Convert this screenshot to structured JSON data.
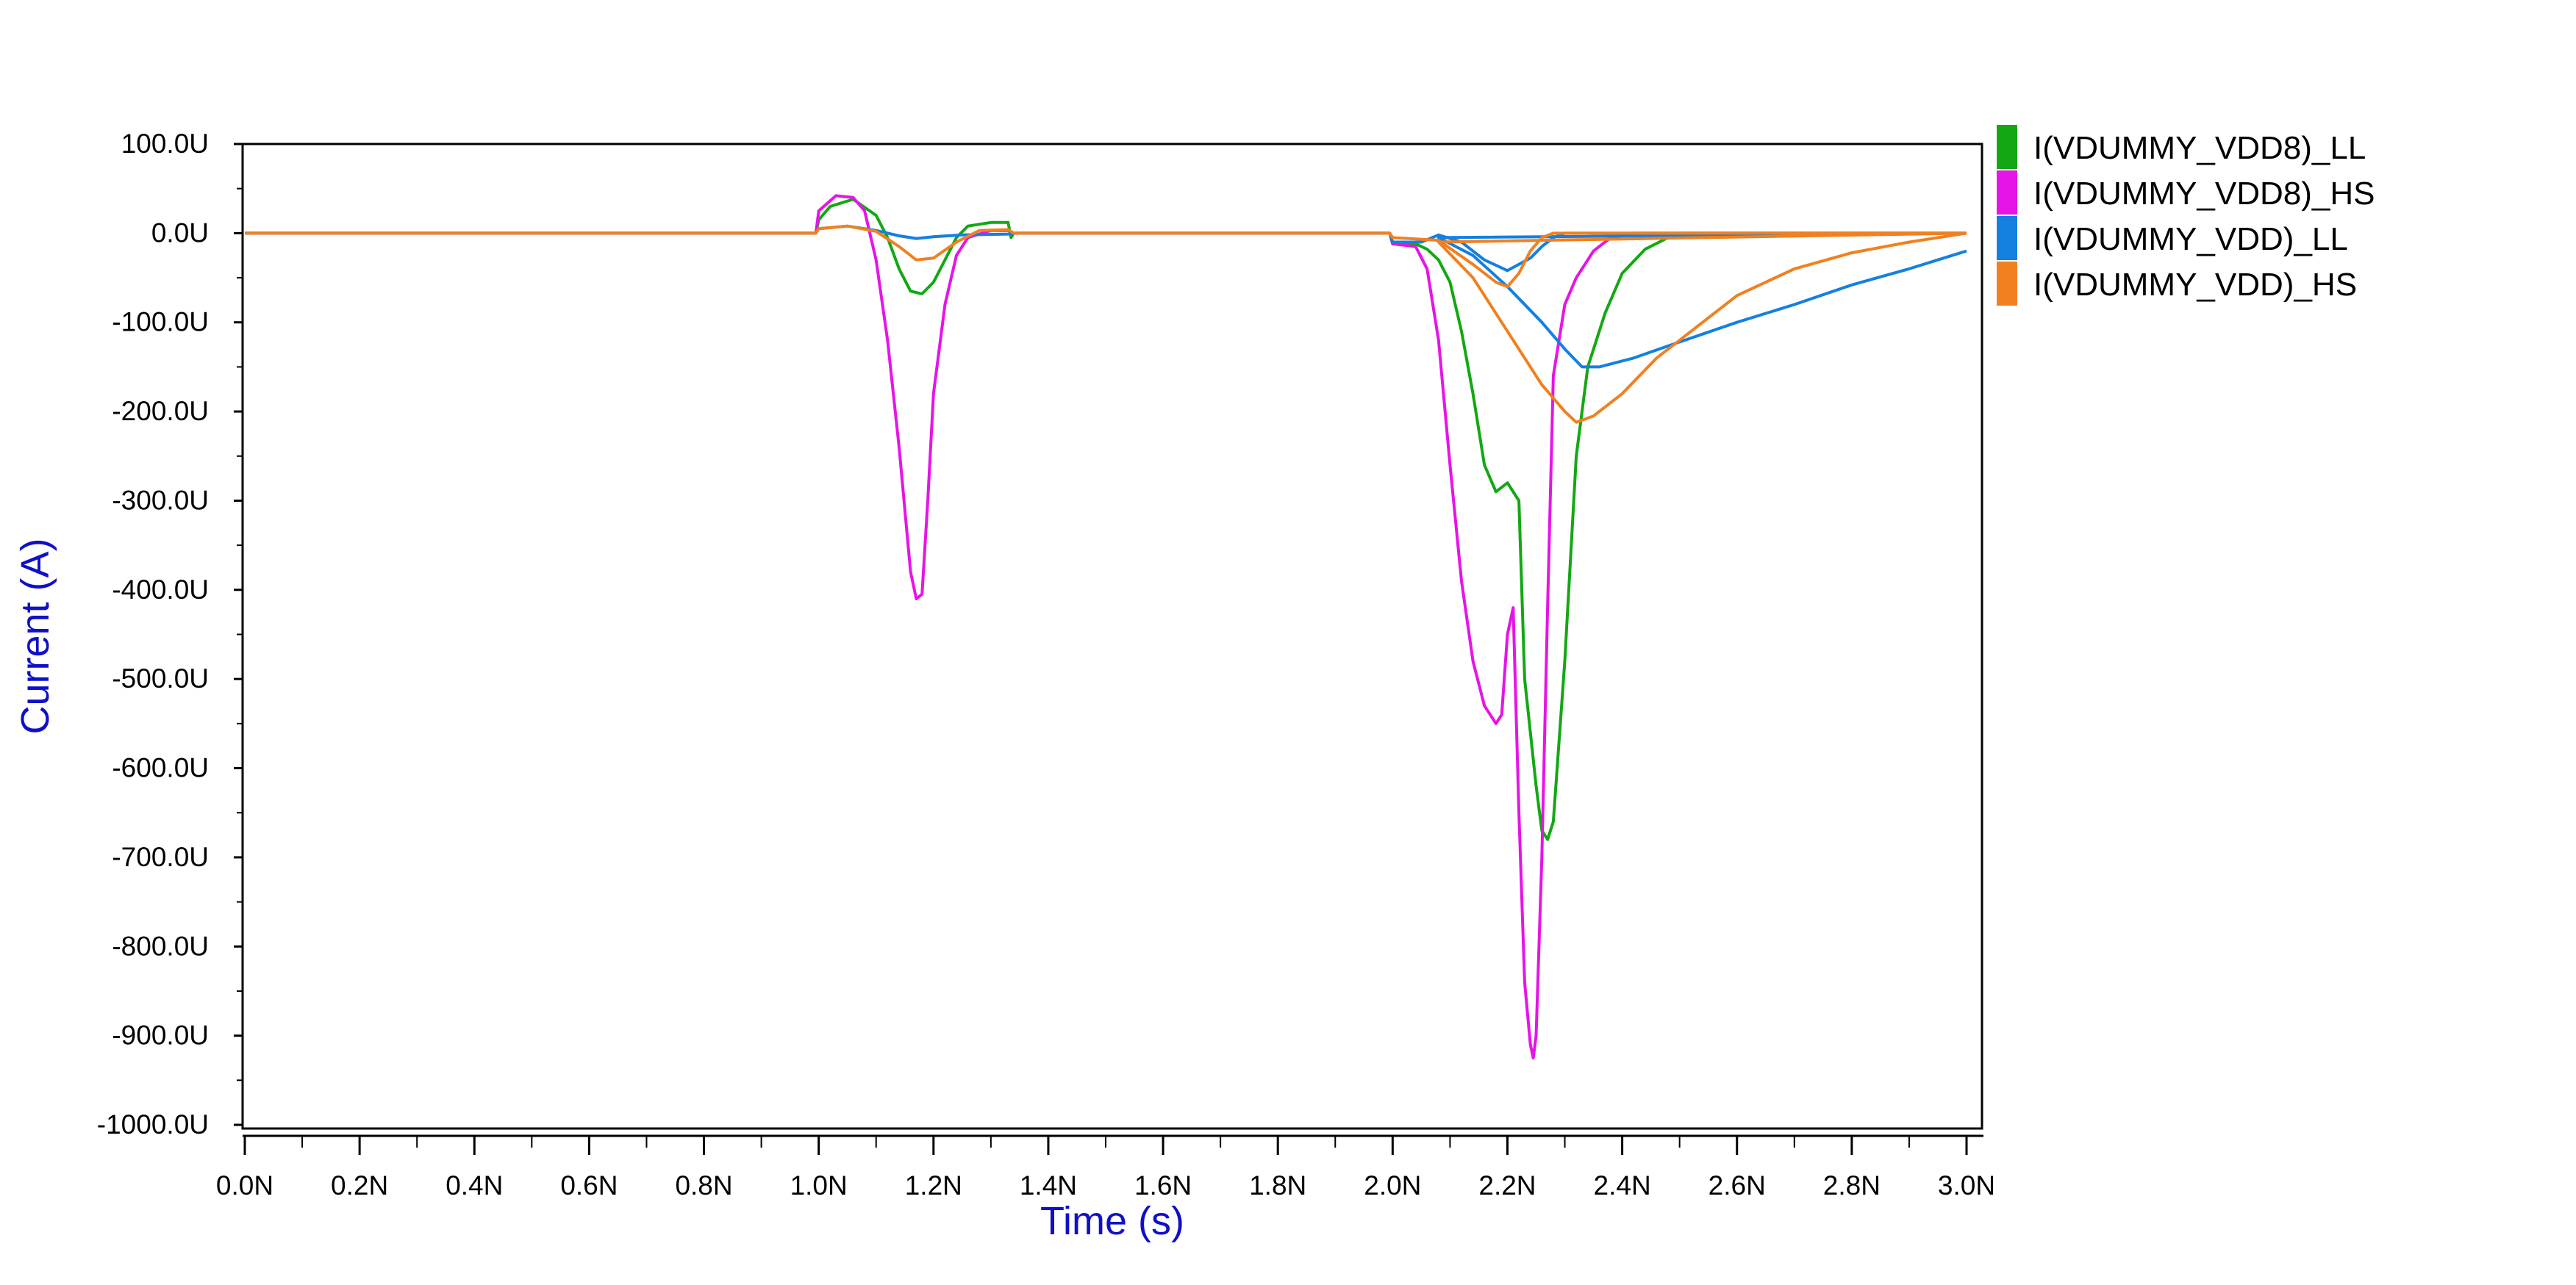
{
  "chart_data": {
    "type": "line",
    "xlabel": "Time (s)",
    "ylabel": "Current (A)",
    "xlim": [
      0,
      3.0
    ],
    "ylim": [
      -1000,
      100
    ],
    "x_unit": "ns",
    "y_unit": "uA",
    "x_ticks": [
      0,
      0.2,
      0.4,
      0.6,
      0.8,
      1.0,
      1.2,
      1.4,
      1.6,
      1.8,
      2.0,
      2.2,
      2.4,
      2.6,
      2.8,
      3.0
    ],
    "x_tick_labels": [
      "0.0N",
      "0.2N",
      "0.4N",
      "0.6N",
      "0.8N",
      "1.0N",
      "1.2N",
      "1.4N",
      "1.6N",
      "1.8N",
      "2.0N",
      "2.2N",
      "2.4N",
      "2.6N",
      "2.8N",
      "3.0N"
    ],
    "y_ticks": [
      100,
      0,
      -100,
      -200,
      -300,
      -400,
      -500,
      -600,
      -700,
      -800,
      -900,
      -1000
    ],
    "y_tick_labels": [
      "100.0U",
      "0.0U",
      "-100.0U",
      "-200.0U",
      "-300.0U",
      "-400.0U",
      "-500.0U",
      "-600.0U",
      "-700.0U",
      "-800.0U",
      "-900.0U",
      "-1000.0U"
    ],
    "grid": false,
    "legend_position": "right-top",
    "axis_title_color": "#1010c8",
    "series": [
      {
        "name": "I(VDUMMY_VDD8)_LL",
        "color": "#13a813",
        "points": [
          [
            0,
            0
          ],
          [
            0.995,
            0
          ],
          [
            1.0,
            15
          ],
          [
            1.02,
            30
          ],
          [
            1.06,
            38
          ],
          [
            1.1,
            20
          ],
          [
            1.12,
            -5
          ],
          [
            1.14,
            -40
          ],
          [
            1.16,
            -65
          ],
          [
            1.18,
            -68
          ],
          [
            1.2,
            -55
          ],
          [
            1.22,
            -30
          ],
          [
            1.24,
            -5
          ],
          [
            1.26,
            8
          ],
          [
            1.3,
            12
          ],
          [
            1.33,
            12
          ],
          [
            1.335,
            -5
          ],
          [
            1.34,
            0
          ],
          [
            1.4,
            0
          ],
          [
            1.995,
            0
          ],
          [
            2.0,
            -12
          ],
          [
            2.04,
            -12
          ],
          [
            2.06,
            -18
          ],
          [
            2.08,
            -30
          ],
          [
            2.1,
            -55
          ],
          [
            2.12,
            -110
          ],
          [
            2.14,
            -180
          ],
          [
            2.16,
            -260
          ],
          [
            2.18,
            -290
          ],
          [
            2.2,
            -280
          ],
          [
            2.22,
            -300
          ],
          [
            2.23,
            -500
          ],
          [
            2.25,
            -620
          ],
          [
            2.26,
            -670
          ],
          [
            2.27,
            -680
          ],
          [
            2.28,
            -660
          ],
          [
            2.3,
            -480
          ],
          [
            2.32,
            -250
          ],
          [
            2.34,
            -150
          ],
          [
            2.37,
            -90
          ],
          [
            2.4,
            -45
          ],
          [
            2.44,
            -18
          ],
          [
            2.48,
            -5
          ],
          [
            2.5,
            0
          ],
          [
            3.0,
            0
          ]
        ]
      },
      {
        "name": "I(VDUMMY_VDD8)_HS",
        "color": "#e614e6",
        "points": [
          [
            0,
            0
          ],
          [
            0.995,
            0
          ],
          [
            1.0,
            25
          ],
          [
            1.03,
            42
          ],
          [
            1.06,
            40
          ],
          [
            1.08,
            25
          ],
          [
            1.1,
            -30
          ],
          [
            1.12,
            -120
          ],
          [
            1.14,
            -240
          ],
          [
            1.16,
            -380
          ],
          [
            1.17,
            -410
          ],
          [
            1.18,
            -405
          ],
          [
            1.19,
            -300
          ],
          [
            1.2,
            -180
          ],
          [
            1.22,
            -80
          ],
          [
            1.24,
            -25
          ],
          [
            1.26,
            -5
          ],
          [
            1.3,
            3
          ],
          [
            1.33,
            3
          ],
          [
            1.34,
            0
          ],
          [
            1.995,
            0
          ],
          [
            2.0,
            -12
          ],
          [
            2.04,
            -15
          ],
          [
            2.06,
            -40
          ],
          [
            2.08,
            -120
          ],
          [
            2.1,
            -260
          ],
          [
            2.12,
            -390
          ],
          [
            2.14,
            -480
          ],
          [
            2.16,
            -530
          ],
          [
            2.18,
            -550
          ],
          [
            2.19,
            -540
          ],
          [
            2.2,
            -450
          ],
          [
            2.21,
            -420
          ],
          [
            2.22,
            -650
          ],
          [
            2.23,
            -840
          ],
          [
            2.24,
            -910
          ],
          [
            2.245,
            -925
          ],
          [
            2.25,
            -900
          ],
          [
            2.26,
            -700
          ],
          [
            2.27,
            -420
          ],
          [
            2.28,
            -160
          ],
          [
            2.3,
            -80
          ],
          [
            2.32,
            -50
          ],
          [
            2.33,
            -40
          ],
          [
            2.35,
            -20
          ],
          [
            2.38,
            -5
          ],
          [
            2.42,
            0
          ],
          [
            3.0,
            0
          ]
        ]
      },
      {
        "name": "I(VDUMMY_VDD)_LL",
        "color": "#1480e0",
        "points": [
          [
            0,
            0
          ],
          [
            0.995,
            0
          ],
          [
            1.0,
            5
          ],
          [
            1.05,
            8
          ],
          [
            1.1,
            3
          ],
          [
            1.14,
            -3
          ],
          [
            1.17,
            -6
          ],
          [
            1.2,
            -4
          ],
          [
            1.25,
            -2
          ],
          [
            1.33,
            -1
          ],
          [
            1.34,
            0
          ],
          [
            1.995,
            0
          ],
          [
            2.0,
            -10
          ],
          [
            2.05,
            -10
          ],
          [
            2.08,
            -2
          ],
          [
            2.12,
            -10
          ],
          [
            2.16,
            -30
          ],
          [
            2.2,
            -42
          ],
          [
            2.24,
            -28
          ],
          [
            2.26,
            -15
          ],
          [
            2.28,
            -5
          ],
          [
            2.3,
            0
          ],
          [
            2.995,
            0
          ],
          [
            2.08,
            -5
          ],
          [
            2.14,
            -25
          ],
          [
            2.2,
            -60
          ],
          [
            2.26,
            -100
          ],
          [
            2.3,
            -130
          ],
          [
            2.33,
            -150
          ],
          [
            2.36,
            -150
          ],
          [
            2.42,
            -140
          ],
          [
            2.5,
            -122
          ],
          [
            2.6,
            -100
          ],
          [
            2.7,
            -80
          ],
          [
            2.8,
            -58
          ],
          [
            2.9,
            -40
          ],
          [
            3.0,
            -20
          ]
        ]
      },
      {
        "name": "I(VDUMMY_VDD)_HS",
        "color": "#f08020",
        "points": [
          [
            0,
            0
          ],
          [
            0.995,
            0
          ],
          [
            1.0,
            5
          ],
          [
            1.05,
            8
          ],
          [
            1.1,
            2
          ],
          [
            1.14,
            -15
          ],
          [
            1.17,
            -30
          ],
          [
            1.2,
            -28
          ],
          [
            1.24,
            -10
          ],
          [
            1.28,
            3
          ],
          [
            1.33,
            4
          ],
          [
            1.34,
            0
          ],
          [
            1.995,
            0
          ],
          [
            2.0,
            -5
          ],
          [
            2.08,
            -8
          ],
          [
            2.14,
            -35
          ],
          [
            2.18,
            -55
          ],
          [
            2.2,
            -60
          ],
          [
            2.22,
            -45
          ],
          [
            2.24,
            -20
          ],
          [
            2.26,
            -5
          ],
          [
            2.28,
            0
          ],
          [
            2.995,
            0
          ],
          [
            2.08,
            -10
          ],
          [
            2.14,
            -50
          ],
          [
            2.2,
            -110
          ],
          [
            2.26,
            -170
          ],
          [
            2.3,
            -200
          ],
          [
            2.32,
            -212
          ],
          [
            2.35,
            -205
          ],
          [
            2.4,
            -180
          ],
          [
            2.46,
            -140
          ],
          [
            2.52,
            -110
          ],
          [
            2.6,
            -70
          ],
          [
            2.7,
            -40
          ],
          [
            2.8,
            -22
          ],
          [
            2.9,
            -10
          ],
          [
            3.0,
            0
          ]
        ]
      }
    ]
  }
}
